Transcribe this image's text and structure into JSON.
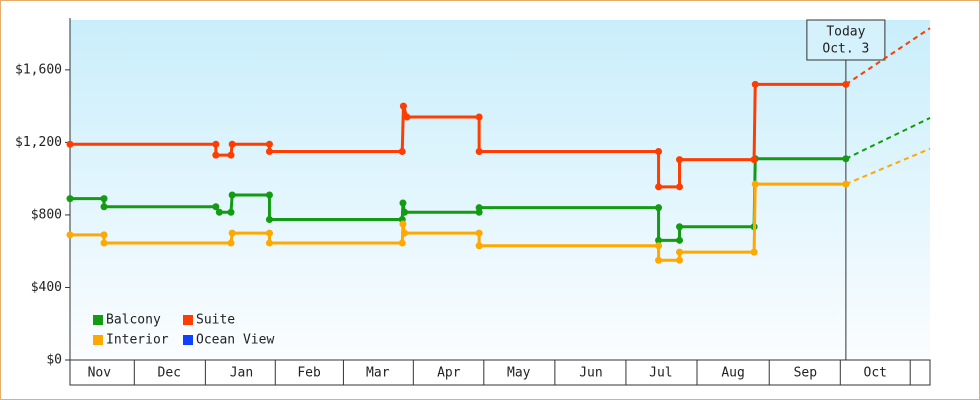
{
  "chart_data": {
    "type": "step-line",
    "xlim": [
      2.4,
      371.5
    ],
    "ylim": [
      0,
      1875
    ],
    "yticks": [
      {
        "value": 0,
        "label": "$0"
      },
      {
        "value": 400,
        "label": "$400"
      },
      {
        "value": 800,
        "label": "$800"
      },
      {
        "value": 1200,
        "label": "$1,200"
      },
      {
        "value": 1600,
        "label": "$1,600"
      }
    ],
    "xticks": [
      {
        "value": 15,
        "label": "Nov"
      },
      {
        "value": 45,
        "label": "Dec"
      },
      {
        "value": 76,
        "label": "Jan"
      },
      {
        "value": 105,
        "label": "Feb"
      },
      {
        "value": 134.5,
        "label": "Mar"
      },
      {
        "value": 165,
        "label": "Apr"
      },
      {
        "value": 195,
        "label": "May"
      },
      {
        "value": 226,
        "label": "Jun"
      },
      {
        "value": 256,
        "label": "Jul"
      },
      {
        "value": 287,
        "label": "Aug"
      },
      {
        "value": 318,
        "label": "Sep"
      },
      {
        "value": 348,
        "label": "Oct"
      }
    ],
    "today": {
      "x": 335.4,
      "label": [
        "Today",
        "Oct. 3"
      ]
    },
    "series": [
      {
        "name": "Balcony",
        "color": "#139c13",
        "x": [
          2.4,
          17,
          17,
          65,
          66.5,
          71.5,
          72,
          88,
          88,
          145,
          145.3,
          146,
          178,
          178,
          255,
          255,
          264,
          264,
          296,
          296.5,
          335.4
        ],
        "values": [
          890,
          890,
          845,
          845,
          815,
          815,
          910,
          910,
          775,
          775,
          866,
          815,
          815,
          840,
          840,
          660,
          660,
          735,
          735,
          1110,
          1110
        ],
        "forecast": 1335
      },
      {
        "name": "Suite",
        "color": "#ff3d00",
        "x": [
          2.4,
          65,
          65,
          71.5,
          72,
          88,
          88,
          145,
          145.5,
          147,
          178,
          178,
          255,
          255,
          264,
          264,
          296,
          296.5,
          335.4
        ],
        "values": [
          1190,
          1190,
          1130,
          1130,
          1190,
          1190,
          1150,
          1150,
          1400,
          1340,
          1340,
          1150,
          1150,
          955,
          955,
          1105,
          1105,
          1520,
          1520
        ],
        "forecast": 1830
      },
      {
        "name": "Interior",
        "color": "#ffa800",
        "x": [
          2.4,
          17,
          17,
          71.5,
          72,
          88,
          88,
          145,
          145.3,
          146,
          178,
          178,
          255,
          255,
          264,
          264,
          296,
          296.5,
          335.4
        ],
        "values": [
          690,
          690,
          645,
          645,
          700,
          700,
          645,
          645,
          750,
          700,
          700,
          630,
          630,
          550,
          550,
          595,
          595,
          970,
          970
        ],
        "forecast": 1165
      },
      {
        "name": "Ocean View",
        "color": "#1040ff",
        "x": [],
        "values": []
      }
    ]
  }
}
